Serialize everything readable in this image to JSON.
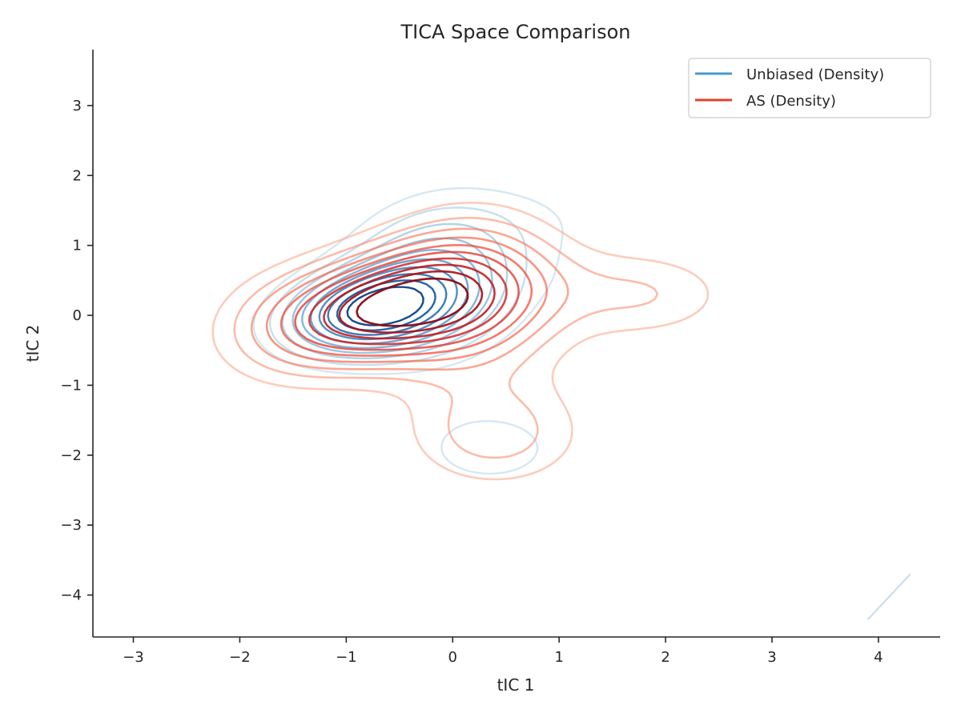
{
  "chart_data": {
    "type": "contour",
    "title": "TICA Space Comparison",
    "xlabel": "tIC 1",
    "ylabel": "tIC 2",
    "xlim": [
      -3.38,
      4.58
    ],
    "ylim": [
      -4.6,
      3.8
    ],
    "x_ticks": [
      -3,
      -2,
      -1,
      0,
      1,
      2,
      3,
      4
    ],
    "x_tick_labels": [
      "−3",
      "−2",
      "−1",
      "0",
      "1",
      "2",
      "3",
      "4"
    ],
    "y_ticks": [
      -4,
      -3,
      -2,
      -1,
      0,
      1,
      2,
      3
    ],
    "y_tick_labels": [
      "−4",
      "−3",
      "−2",
      "−1",
      "0",
      "1",
      "2",
      "3"
    ],
    "grid": false,
    "legend_position": "top-right",
    "series": [
      {
        "name": "Unbiased (Density)",
        "legend_color": "#4a98c9",
        "colormap": "Blues",
        "levels": 10,
        "peak": [
          -0.8,
          0.05
        ],
        "components": [
          {
            "weight": 1.0,
            "center": [
              -0.8,
              0.05
            ],
            "sigma": [
              0.55,
              0.42
            ],
            "rho": 0.25
          },
          {
            "weight": 0.55,
            "center": [
              -0.15,
              0.55
            ],
            "sigma": [
              0.6,
              0.75
            ],
            "rho": 0.1
          },
          {
            "weight": 0.22,
            "center": [
              0.35,
              -1.9
            ],
            "sigma": [
              0.55,
              0.45
            ],
            "rho": 0.0
          },
          {
            "weight": 0.14,
            "center": [
              2.0,
              0.4
            ],
            "sigma": [
              0.6,
              0.35
            ],
            "rho": 0.0
          },
          {
            "weight": 0.1,
            "center": [
              1.0,
              1.4
            ],
            "sigma": [
              0.7,
              0.5
            ],
            "rho": 0.0
          }
        ]
      },
      {
        "name": "AS (Density)",
        "legend_color": "#e6402e",
        "colormap": "Reds",
        "levels": 10,
        "peak": [
          -0.65,
          0.1
        ],
        "components": [
          {
            "weight": 1.0,
            "center": [
              -0.65,
              0.1
            ],
            "sigma": [
              0.75,
              0.55
            ],
            "rho": 0.3
          },
          {
            "weight": 0.5,
            "center": [
              0.2,
              0.3
            ],
            "sigma": [
              0.6,
              0.8
            ],
            "rho": 0.0
          },
          {
            "weight": 0.3,
            "center": [
              0.4,
              -1.7
            ],
            "sigma": [
              0.6,
              0.55
            ],
            "rho": 0.0
          },
          {
            "weight": 0.25,
            "center": [
              1.8,
              0.3
            ],
            "sigma": [
              0.6,
              0.45
            ],
            "rho": 0.0
          },
          {
            "weight": 0.12,
            "center": [
              -1.6,
              -0.2
            ],
            "sigma": [
              0.5,
              0.6
            ],
            "rho": 0.0
          }
        ]
      }
    ],
    "stray_feature": {
      "series": "Unbiased (Density)",
      "from": [
        3.9,
        -4.35
      ],
      "to": [
        4.3,
        -3.7
      ]
    }
  }
}
